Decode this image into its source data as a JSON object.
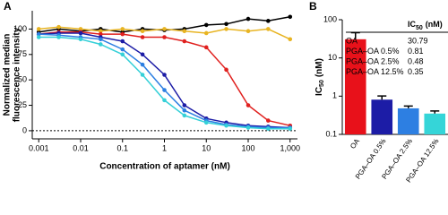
{
  "panels": [
    "A",
    "B"
  ],
  "chart_data": [
    {
      "type": "line",
      "x_label": "Concentration of aptamer (nM)",
      "y_label": [
        "Normalized median",
        "fluorescence intensity"
      ],
      "x": [
        0.001,
        0.003,
        0.01,
        0.03,
        0.1,
        0.3,
        1,
        3,
        10,
        30,
        100,
        300,
        1000
      ],
      "series": [
        {
          "color": "#000000",
          "values": [
            97,
            100,
            98,
            100,
            97,
            100,
            99,
            100,
            104,
            105,
            110,
            108,
            112
          ]
        },
        {
          "color": "#e8b422",
          "values": [
            100,
            102,
            100,
            98,
            100,
            98,
            100,
            98,
            96,
            100,
            98,
            100,
            90
          ]
        },
        {
          "color": "#e0201e",
          "values": [
            95,
            97,
            97,
            95,
            95,
            92,
            92,
            88,
            82,
            60,
            25,
            10,
            5
          ]
        },
        {
          "color": "#1c1ca6",
          "values": [
            95,
            96,
            96,
            92,
            88,
            75,
            55,
            25,
            12,
            8,
            5,
            4,
            3
          ]
        },
        {
          "color": "#2d7fe2",
          "values": [
            95,
            94,
            92,
            90,
            80,
            65,
            40,
            20,
            10,
            6,
            4,
            3,
            3
          ]
        },
        {
          "color": "#35d0d8",
          "values": [
            92,
            92,
            90,
            85,
            75,
            55,
            30,
            15,
            8,
            5,
            3,
            2,
            2
          ]
        }
      ],
      "log_x": true,
      "xlim": [
        0.0007,
        1500
      ],
      "xticks": [
        0.001,
        0.01,
        0.1,
        1,
        10,
        100,
        {
          "value": 1000,
          "label": "1,000"
        }
      ],
      "ylim": [
        -8,
        118
      ],
      "yticks": [
        0,
        25,
        50,
        75,
        100
      ],
      "reference_line": 0
    },
    {
      "type": "bar",
      "y_label": {
        "main": "IC",
        "sub": "50",
        "unit": "(nM)"
      },
      "categories": [
        "OA",
        "PGA–OA 0.5%",
        "PGA–OA 2.5%",
        "PGA–OA 12.5%"
      ],
      "values": [
        30.79,
        0.81,
        0.48,
        0.35
      ],
      "errors": [
        15,
        0.2,
        0.07,
        0.06
      ],
      "colors": [
        "#e8111a",
        "#1c1ca6",
        "#2d7fe2",
        "#35d5d8"
      ],
      "log_y": true,
      "ylim": [
        0.1,
        100
      ],
      "yticks": [
        0.1,
        1,
        10,
        100
      ],
      "table": {
        "header": {
          "main": "IC",
          "sub": "50",
          "unit": "(nM)"
        }
      }
    }
  ]
}
